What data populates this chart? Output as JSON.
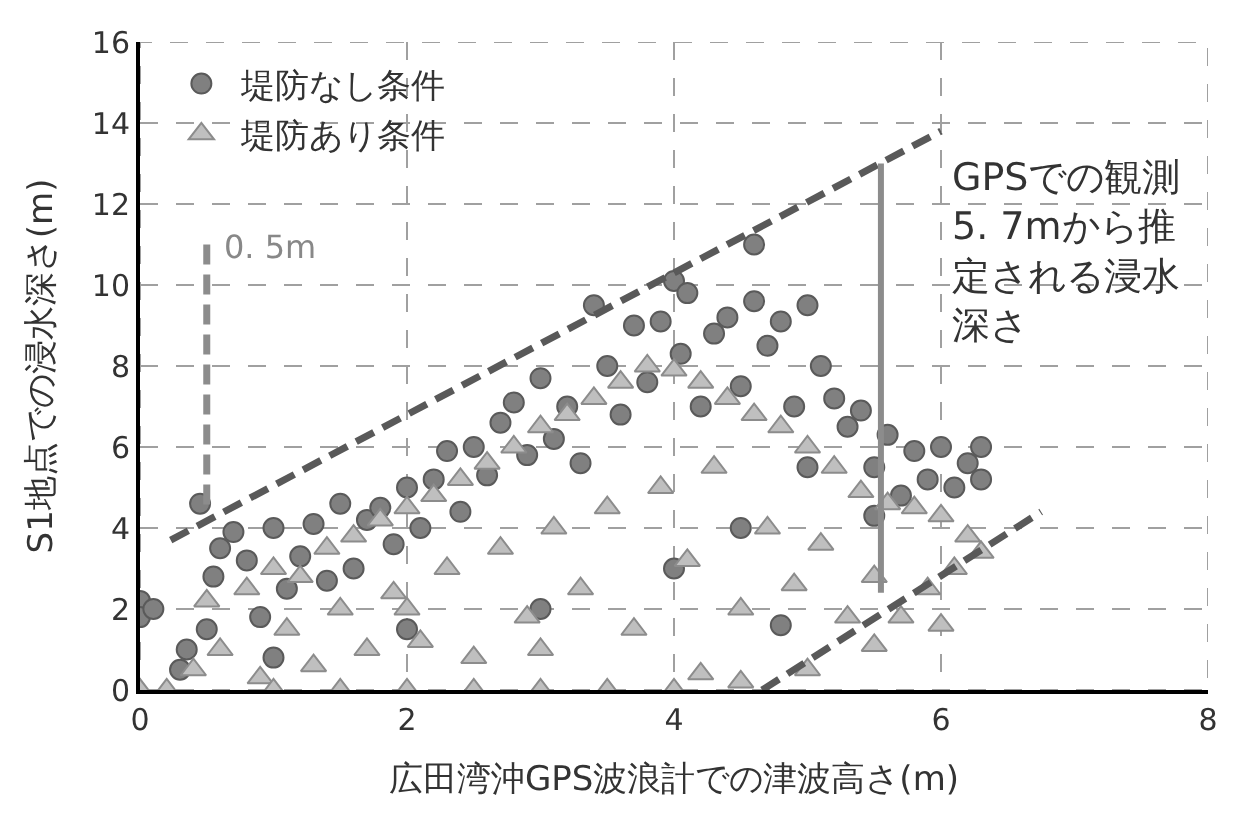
{
  "chart_data": {
    "type": "scatter",
    "xlabel": "広田湾沖GPS波浪計での津波高さ(m)",
    "ylabel": "S1地点での浸水深さ(m)",
    "xlim": [
      0,
      8
    ],
    "xticks": [
      0,
      2,
      4,
      6,
      8
    ],
    "ylim": [
      0,
      16
    ],
    "yticks": [
      0,
      2,
      4,
      6,
      8,
      10,
      12,
      14,
      16
    ],
    "grid": true,
    "legend": "top left",
    "annotations": [
      "0. 5m",
      "GPSでの観測5. 7mから推定される浸水深さ"
    ],
    "series": [
      {
        "name": "堤防なし条件",
        "color": "#808080",
        "marker": "circle",
        "x": [
          0,
          0,
          0.1,
          0.3,
          0.35,
          0.45,
          0.5,
          0.55,
          0.6,
          0.7,
          0.8,
          0.9,
          1.0,
          1.1,
          1.2,
          1.3,
          1.4,
          1.5,
          1.6,
          1.7,
          1.8,
          1.9,
          2.0,
          2.1,
          2.2,
          2.3,
          2.4,
          2.5,
          2.6,
          2.7,
          2.8,
          2.9,
          3.0,
          3.1,
          3.2,
          3.3,
          3.4,
          3.5,
          3.6,
          3.7,
          3.8,
          3.9,
          4.0,
          4.05,
          4.1,
          4.2,
          4.3,
          4.4,
          4.5,
          4.6,
          4.6,
          4.7,
          4.8,
          4.9,
          5.0,
          5.1,
          5.2,
          5.3,
          5.4,
          5.5,
          5.6,
          5.7,
          5.8,
          5.9,
          6.0,
          6.1,
          6.2,
          6.3,
          6.3,
          1.0,
          2.0,
          3.0,
          4.0,
          4.5,
          5.0,
          5.5,
          4.8
        ],
        "values": [
          2.2,
          1.8,
          2.0,
          0.5,
          1.0,
          4.6,
          1.5,
          2.8,
          3.5,
          3.9,
          3.2,
          1.8,
          4.0,
          2.5,
          3.3,
          4.1,
          2.7,
          4.6,
          3.0,
          4.2,
          4.5,
          3.6,
          5.0,
          4.0,
          5.2,
          5.9,
          4.4,
          6.0,
          5.3,
          6.6,
          7.1,
          5.8,
          7.7,
          6.2,
          7.0,
          5.6,
          9.5,
          8.0,
          6.8,
          9.0,
          7.6,
          9.1,
          10.1,
          8.3,
          9.8,
          7.0,
          8.8,
          9.2,
          7.5,
          11.0,
          9.6,
          8.5,
          9.1,
          7.0,
          9.5,
          8.0,
          7.2,
          6.5,
          6.9,
          5.5,
          6.3,
          4.8,
          5.9,
          5.2,
          6.0,
          5.0,
          5.6,
          6.0,
          5.2,
          0.8,
          1.5,
          2.0,
          3.0,
          4.0,
          5.5,
          4.3,
          1.6
        ]
      },
      {
        "name": "堤防あり条件",
        "color": "#bfbfbf",
        "marker": "triangle",
        "x": [
          0,
          0.2,
          0.4,
          0.5,
          0.6,
          0.8,
          0.9,
          1.0,
          1.1,
          1.2,
          1.3,
          1.4,
          1.5,
          1.6,
          1.7,
          1.8,
          1.9,
          2.0,
          2.1,
          2.2,
          2.3,
          2.4,
          2.5,
          2.6,
          2.7,
          2.8,
          2.9,
          3.0,
          3.1,
          3.2,
          3.3,
          3.4,
          3.5,
          3.6,
          3.7,
          3.8,
          3.9,
          4.0,
          4.1,
          4.2,
          4.3,
          4.4,
          4.5,
          4.6,
          4.7,
          4.8,
          4.9,
          5.0,
          5.1,
          5.2,
          5.3,
          5.4,
          5.5,
          5.6,
          5.7,
          5.8,
          5.9,
          6.0,
          6.1,
          6.2,
          6.3,
          1.0,
          1.5,
          2.0,
          2.5,
          3.0,
          3.5,
          4.0,
          4.5,
          5.0,
          5.5,
          6.0,
          3.0,
          2.0,
          4.2
        ],
        "values": [
          0,
          0,
          0.5,
          2.2,
          1.0,
          2.5,
          0.3,
          3.0,
          1.5,
          2.8,
          0.6,
          3.5,
          2.0,
          3.8,
          1.0,
          4.2,
          2.4,
          4.5,
          1.2,
          4.8,
          3.0,
          5.2,
          0.8,
          5.6,
          3.5,
          6.0,
          1.8,
          6.5,
          4.0,
          6.8,
          2.5,
          7.2,
          4.5,
          7.6,
          1.5,
          8.0,
          5.0,
          7.9,
          3.2,
          7.6,
          5.5,
          7.2,
          2.0,
          6.8,
          4.0,
          6.5,
          2.6,
          6.0,
          3.6,
          5.5,
          1.8,
          4.9,
          2.8,
          4.6,
          1.8,
          4.5,
          2.5,
          4.3,
          3.0,
          3.8,
          3.4,
          0,
          0,
          0,
          0,
          0,
          0,
          0,
          0.2,
          0.5,
          1.1,
          1.6,
          1.0,
          2.0,
          0.4
        ]
      },
      {
        "type": "line",
        "color": "#595959",
        "line_style": "dashed",
        "x": [
          0.23,
          6.0
        ],
        "values": [
          3.7,
          13.8
        ]
      },
      {
        "type": "line",
        "color": "#595959",
        "line_style": "dashed",
        "x": [
          4.66,
          6.75
        ],
        "values": [
          0,
          4.4
        ]
      },
      {
        "type": "line",
        "color": "#8c8c8c",
        "line_style": "dashed",
        "x": [
          0.5,
          0.5
        ],
        "values": [
          11.0,
          4.4
        ]
      },
      {
        "type": "line",
        "color": "#8c8c8c",
        "line_style": "solid",
        "x": [
          5.55,
          5.55
        ],
        "values": [
          2.4,
          13.0
        ]
      }
    ]
  }
}
